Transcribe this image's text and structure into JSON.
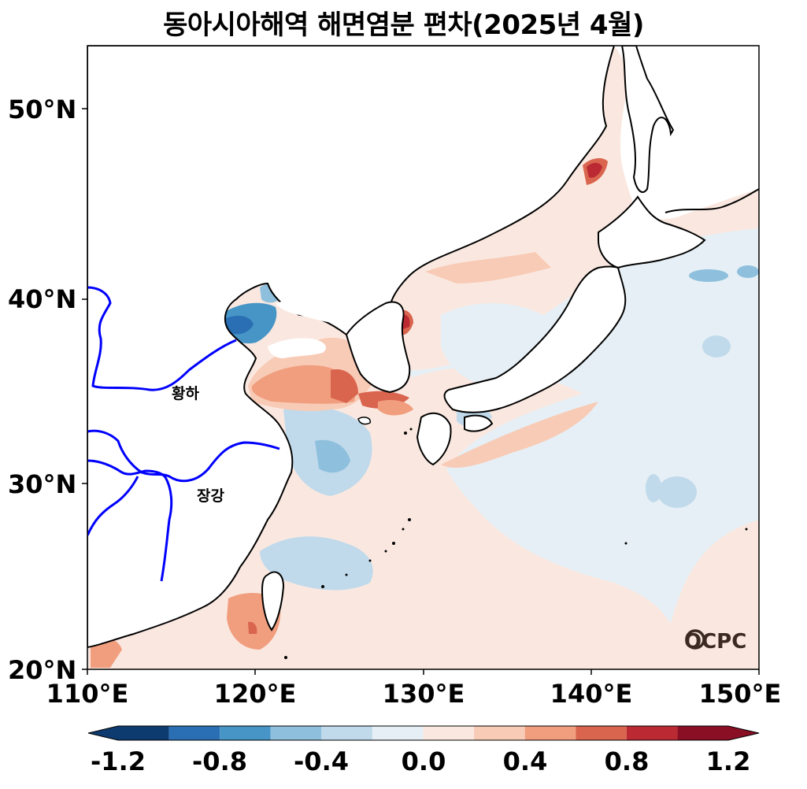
{
  "title": "동아시아해역 해면염분 편차(2025년 4월)",
  "axes": {
    "lat_labels": [
      "50°N",
      "40°N",
      "30°N",
      "20°N"
    ],
    "lon_labels": [
      "110°E",
      "120°E",
      "130°E",
      "140°E",
      "150°E"
    ]
  },
  "places": {
    "yellow_river": "황하",
    "yangtze": "장강"
  },
  "logo": "OCPC",
  "colorbar": {
    "labels": [
      "-1.2",
      "-0.8",
      "-0.4",
      "0.0",
      "0.4",
      "0.8",
      "1.2"
    ],
    "levels": [
      -1.2,
      -1.0,
      -0.8,
      -0.6,
      -0.4,
      -0.2,
      0.0,
      0.2,
      0.4,
      0.6,
      0.8,
      1.0,
      1.2
    ],
    "colors": [
      "#0d3b70",
      "#2a6fb4",
      "#4695c6",
      "#8ec0dd",
      "#c0daeb",
      "#e6eff5",
      "#fae8e0",
      "#f8cbb6",
      "#f19e7f",
      "#d9654f",
      "#bb2a33",
      "#8a0f25"
    ],
    "extend": "both"
  },
  "colors": {
    "land": "#ffffff",
    "coast": "#000000",
    "river": "#0000ff"
  }
}
